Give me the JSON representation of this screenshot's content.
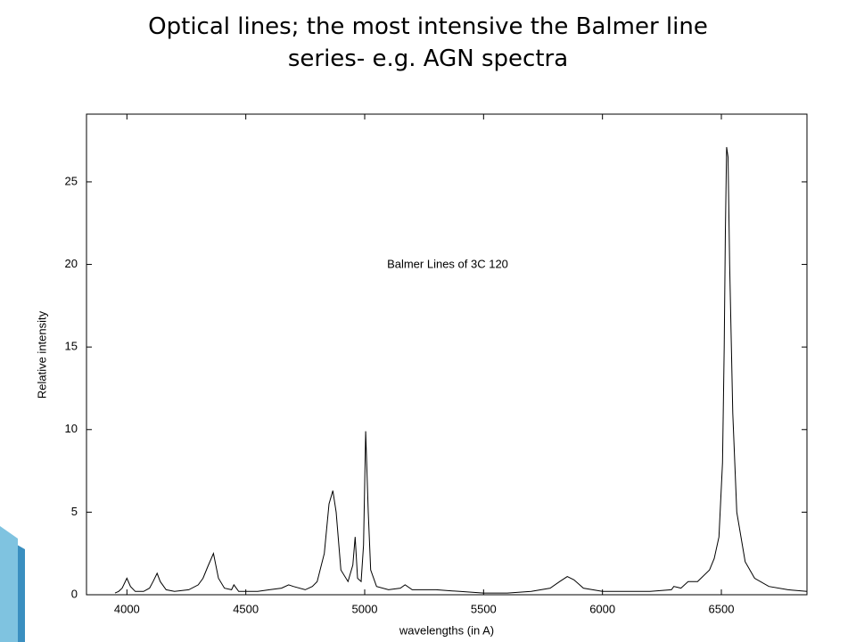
{
  "chart_data": {
    "type": "line",
    "title": [
      "Optical lines; the most intensive the Balmer line",
      "series- e.g. AGN spectra"
    ],
    "annotation": "Balmer Lines of 3C 120",
    "x_label": "wavelengths (in A)",
    "y_label": "Relative intensity",
    "color": "#000000",
    "xlim": [
      3830,
      6860
    ],
    "ylim": [
      0,
      29.1
    ],
    "xticks": [
      4000,
      4500,
      5000,
      5500,
      6000,
      6500
    ],
    "yticks": [
      0,
      5,
      10,
      15,
      20,
      25
    ],
    "x": [
      3950,
      3965,
      3980,
      4000,
      4015,
      4035,
      4070,
      4095,
      4110,
      4127,
      4140,
      4165,
      4200,
      4260,
      4300,
      4320,
      4340,
      4364,
      4385,
      4410,
      4440,
      4450,
      4470,
      4550,
      4600,
      4650,
      4680,
      4700,
      4750,
      4780,
      4800,
      4830,
      4850,
      4866,
      4880,
      4900,
      4930,
      4950,
      4960,
      4970,
      4985,
      4995,
      5004,
      5015,
      5025,
      5050,
      5100,
      5150,
      5170,
      5200,
      5300,
      5400,
      5500,
      5600,
      5700,
      5780,
      5820,
      5852,
      5880,
      5920,
      6000,
      6100,
      6200,
      6290,
      6300,
      6330,
      6360,
      6400,
      6450,
      6470,
      6490,
      6505,
      6512,
      6517,
      6522,
      6528,
      6535,
      6548,
      6565,
      6600,
      6640,
      6700,
      6780,
      6860
    ],
    "y": [
      0.1,
      0.2,
      0.4,
      1.0,
      0.5,
      0.2,
      0.2,
      0.4,
      0.8,
      1.3,
      0.8,
      0.3,
      0.2,
      0.3,
      0.6,
      1.0,
      1.7,
      2.5,
      1.0,
      0.4,
      0.3,
      0.6,
      0.2,
      0.2,
      0.3,
      0.4,
      0.6,
      0.5,
      0.3,
      0.5,
      0.8,
      2.5,
      5.5,
      6.3,
      5.0,
      1.5,
      0.8,
      1.8,
      3.5,
      1.0,
      0.8,
      3.0,
      9.9,
      5.0,
      1.5,
      0.5,
      0.3,
      0.4,
      0.6,
      0.3,
      0.3,
      0.2,
      0.1,
      0.1,
      0.2,
      0.4,
      0.8,
      1.1,
      0.9,
      0.4,
      0.2,
      0.2,
      0.2,
      0.3,
      0.5,
      0.4,
      0.8,
      0.8,
      1.5,
      2.2,
      3.5,
      8,
      15,
      22,
      27.1,
      26.5,
      20,
      11,
      5,
      2.0,
      1.0,
      0.5,
      0.3,
      0.2
    ]
  }
}
